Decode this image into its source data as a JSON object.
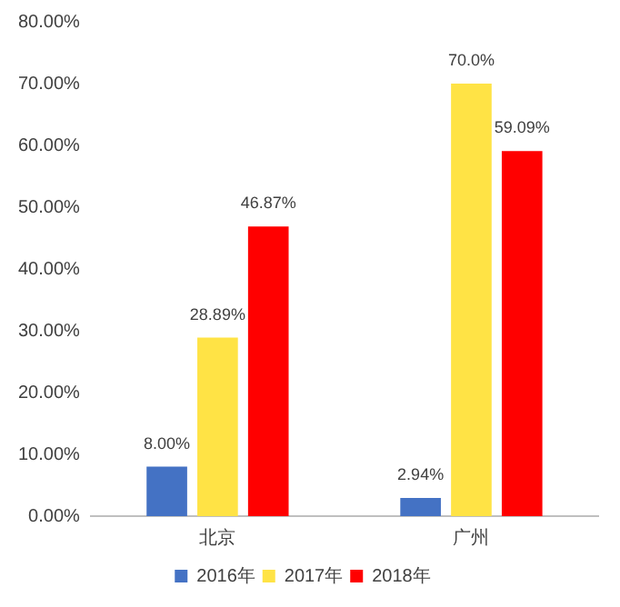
{
  "chart_data": {
    "type": "bar",
    "categories": [
      "北京",
      "广州"
    ],
    "series": [
      {
        "name": "2016年",
        "color": "#4472c4",
        "values": [
          8.0,
          2.94
        ],
        "value_labels": [
          "8.00%",
          "2.94%"
        ]
      },
      {
        "name": "2017年",
        "color": "#ffe345",
        "values": [
          28.89,
          70.0
        ],
        "value_labels": [
          "28.89%",
          "70.0%"
        ]
      },
      {
        "name": "2018年",
        "color": "#ff0000",
        "values": [
          46.87,
          59.09
        ],
        "value_labels": [
          "46.87%",
          "59.09%"
        ]
      }
    ],
    "ylim": [
      0,
      80
    ],
    "yticks": [
      {
        "value": 0,
        "label": "0.00%"
      },
      {
        "value": 10,
        "label": "10.00%"
      },
      {
        "value": 20,
        "label": "20.00%"
      },
      {
        "value": 30,
        "label": "30.00%"
      },
      {
        "value": 40,
        "label": "40.00%"
      },
      {
        "value": 50,
        "label": "50.00%"
      },
      {
        "value": 60,
        "label": "60.00%"
      },
      {
        "value": 70,
        "label": "70.00%"
      },
      {
        "value": 80,
        "label": "80.00%"
      }
    ],
    "grid": false,
    "legend": "bottom"
  }
}
